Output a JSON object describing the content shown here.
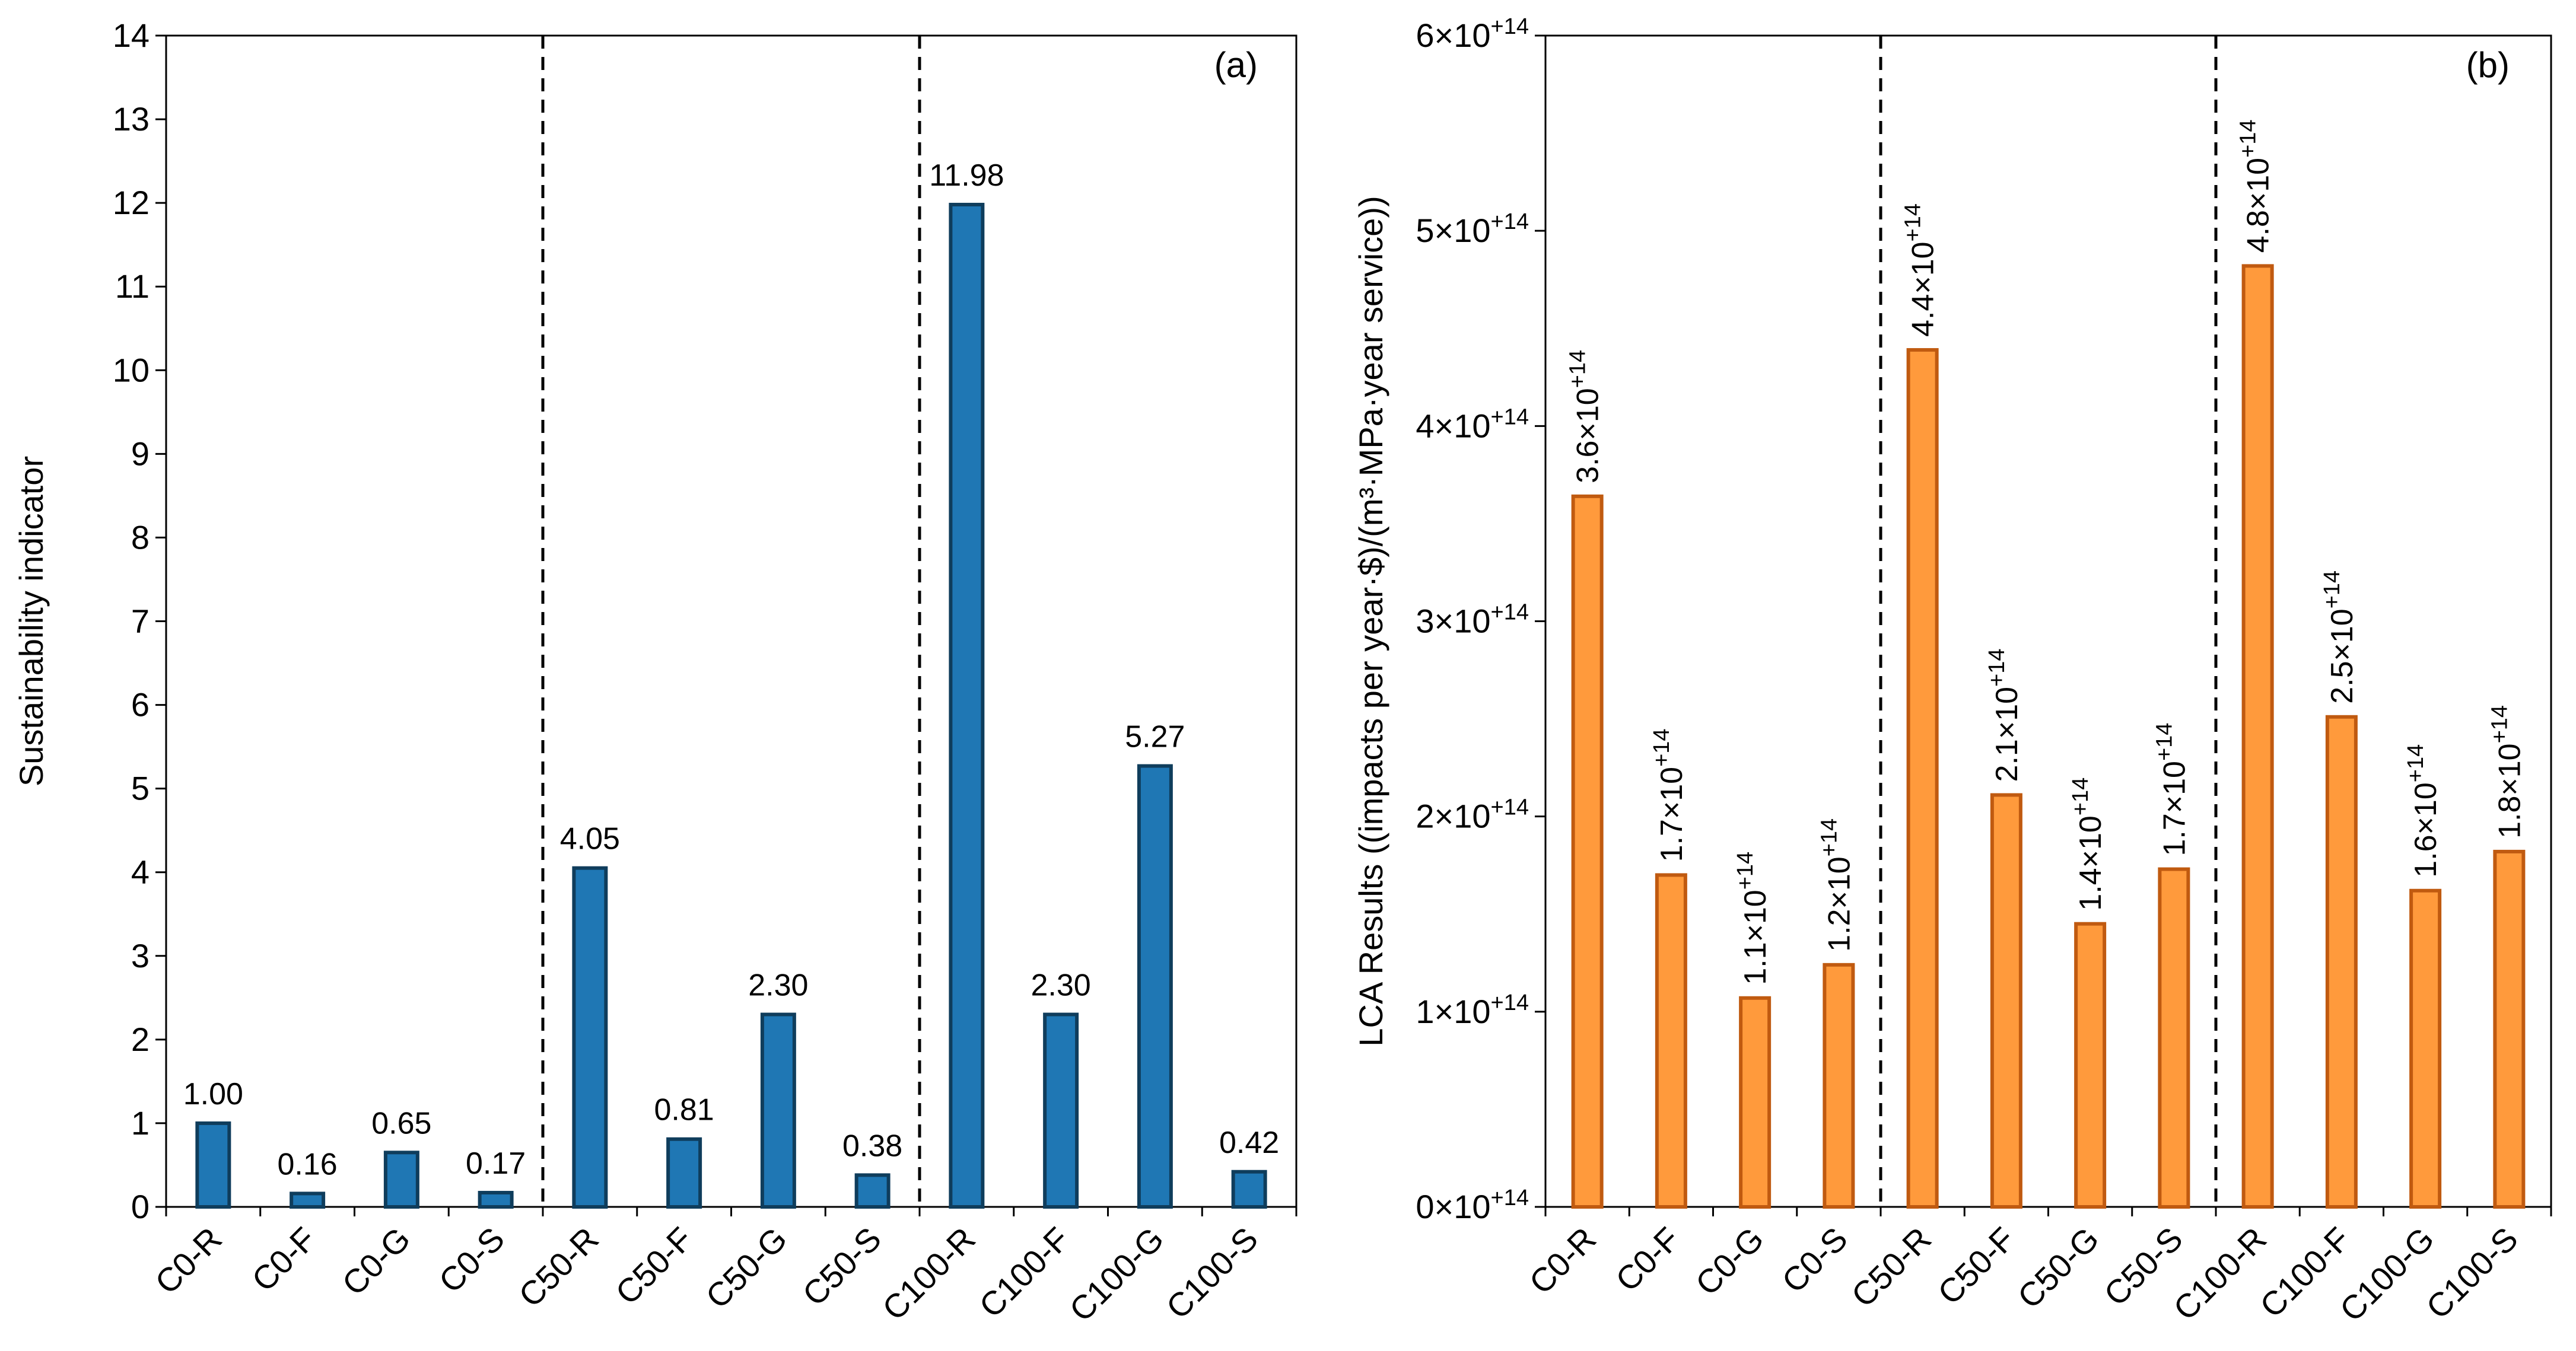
{
  "chart_data": [
    {
      "type": "bar",
      "panel_label": "(a)",
      "ylabel": "Sustainability indicator",
      "ylim": [
        0,
        14
      ],
      "yticks": [
        "0",
        "1",
        "2",
        "3",
        "4",
        "5",
        "6",
        "7",
        "8",
        "9",
        "10",
        "11",
        "12",
        "13",
        "14"
      ],
      "categories": [
        "C0-R",
        "C0-F",
        "C0-G",
        "C0-S",
        "C50-R",
        "C50-F",
        "C50-G",
        "C50-S",
        "C100-R",
        "C100-F",
        "C100-G",
        "C100-S"
      ],
      "values": [
        1.0,
        0.16,
        0.65,
        0.17,
        4.05,
        0.81,
        2.3,
        0.38,
        11.98,
        2.3,
        5.27,
        0.42
      ],
      "data_labels": [
        "1.00",
        "0.16",
        "0.65",
        "0.17",
        "4.05",
        "0.81",
        "2.30",
        "0.38",
        "11.98",
        "2.30",
        "5.27",
        "0.42"
      ],
      "group_separators_after": [
        4,
        8
      ],
      "bar_fill": "#1f77b4",
      "bar_stroke": "#0f3d5c",
      "grid": false
    },
    {
      "type": "bar",
      "panel_label": "(b)",
      "ylabel": "LCA Results ((impacts per year·$)/(m³·MPa·year service))",
      "ylim": [
        0,
        600000000000000.0
      ],
      "yticks": [
        {
          "mant": "0",
          "exp": "+14"
        },
        {
          "mant": "1",
          "exp": "+14"
        },
        {
          "mant": "2",
          "exp": "+14"
        },
        {
          "mant": "3",
          "exp": "+14"
        },
        {
          "mant": "4",
          "exp": "+14"
        },
        {
          "mant": "5",
          "exp": "+14"
        },
        {
          "mant": "6",
          "exp": "+14"
        }
      ],
      "categories": [
        "C0-R",
        "C0-F",
        "C0-G",
        "C0-S",
        "C50-R",
        "C50-F",
        "C50-G",
        "C50-S",
        "C100-R",
        "C100-F",
        "C100-G",
        "C100-S"
      ],
      "values": [
        364000000000000.0,
        170000000000000.0,
        107000000000000.0,
        124000000000000.0,
        439000000000000.0,
        211000000000000.0,
        145000000000000.0,
        173000000000000.0,
        482000000000000.0,
        251000000000000.0,
        162000000000000.0,
        182000000000000.0
      ],
      "data_labels": [
        {
          "mant": "3.6",
          "exp": "+14"
        },
        {
          "mant": "1.7",
          "exp": "+14"
        },
        {
          "mant": "1.1",
          "exp": "+14"
        },
        {
          "mant": "1.2",
          "exp": "+14"
        },
        {
          "mant": "4.4",
          "exp": "+14"
        },
        {
          "mant": "2.1",
          "exp": "+14"
        },
        {
          "mant": "1.4",
          "exp": "+14"
        },
        {
          "mant": "1.7",
          "exp": "+14"
        },
        {
          "mant": "4.8",
          "exp": "+14"
        },
        {
          "mant": "2.5",
          "exp": "+14"
        },
        {
          "mant": "1.6",
          "exp": "+14"
        },
        {
          "mant": "1.8",
          "exp": "+14"
        }
      ],
      "group_separators_after": [
        4,
        8
      ],
      "bar_fill": "#ff9a3c",
      "bar_stroke": "#c05a10",
      "grid": false
    }
  ]
}
